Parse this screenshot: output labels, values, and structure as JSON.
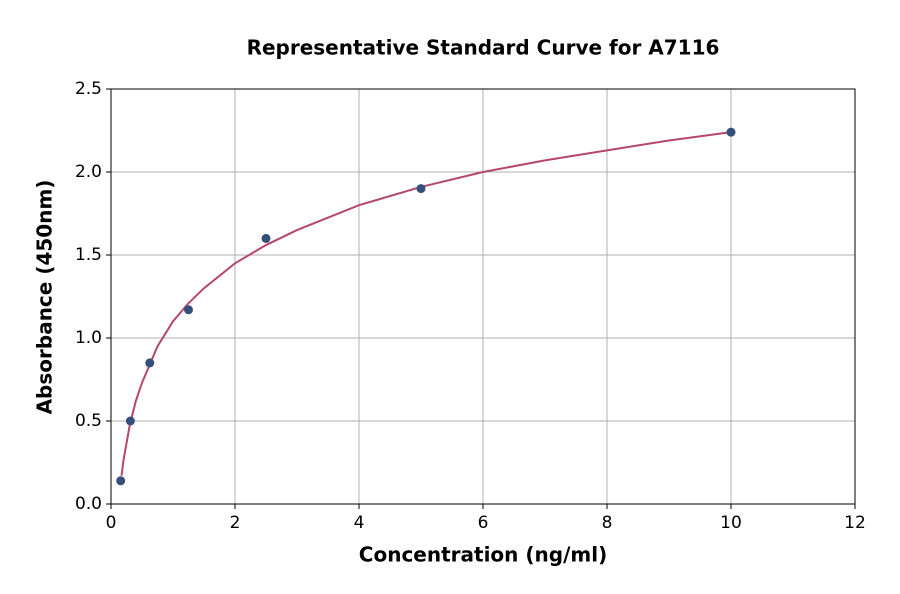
{
  "chart_data": {
    "type": "scatter",
    "title": "Representative Standard Curve for A7116",
    "xlabel": "Concentration (ng/ml)",
    "ylabel": "Absorbance (450nm)",
    "xlim": [
      0,
      12
    ],
    "ylim": [
      0,
      2.5
    ],
    "xticks": [
      0,
      2,
      4,
      6,
      8,
      10,
      12
    ],
    "yticks": [
      {
        "value": 0,
        "label": "0.0"
      },
      0.5,
      {
        "value": 1,
        "label": "1.0"
      },
      1.5,
      {
        "value": 2,
        "label": "2.0"
      },
      2.5
    ],
    "grid": true,
    "series": [
      {
        "type": "line",
        "color": "#b5486a",
        "x": [
          0.17,
          0.2,
          0.3,
          0.4,
          0.5,
          0.75,
          1,
          1.25,
          1.5,
          2,
          2.5,
          3,
          4,
          5,
          6,
          7,
          8,
          9,
          10
        ],
        "values": [
          0.17,
          0.26,
          0.47,
          0.62,
          0.73,
          0.95,
          1.1,
          1.21,
          1.3,
          1.45,
          1.56,
          1.65,
          1.8,
          1.91,
          2.0,
          2.07,
          2.13,
          2.19,
          2.24
        ]
      },
      {
        "type": "scatter",
        "color": "#34507a",
        "x": [
          0.156,
          0.313,
          0.625,
          1.25,
          2.5,
          5,
          10
        ],
        "values": [
          0.14,
          0.5,
          0.85,
          1.17,
          1.6,
          1.9,
          2.24
        ]
      }
    ]
  }
}
